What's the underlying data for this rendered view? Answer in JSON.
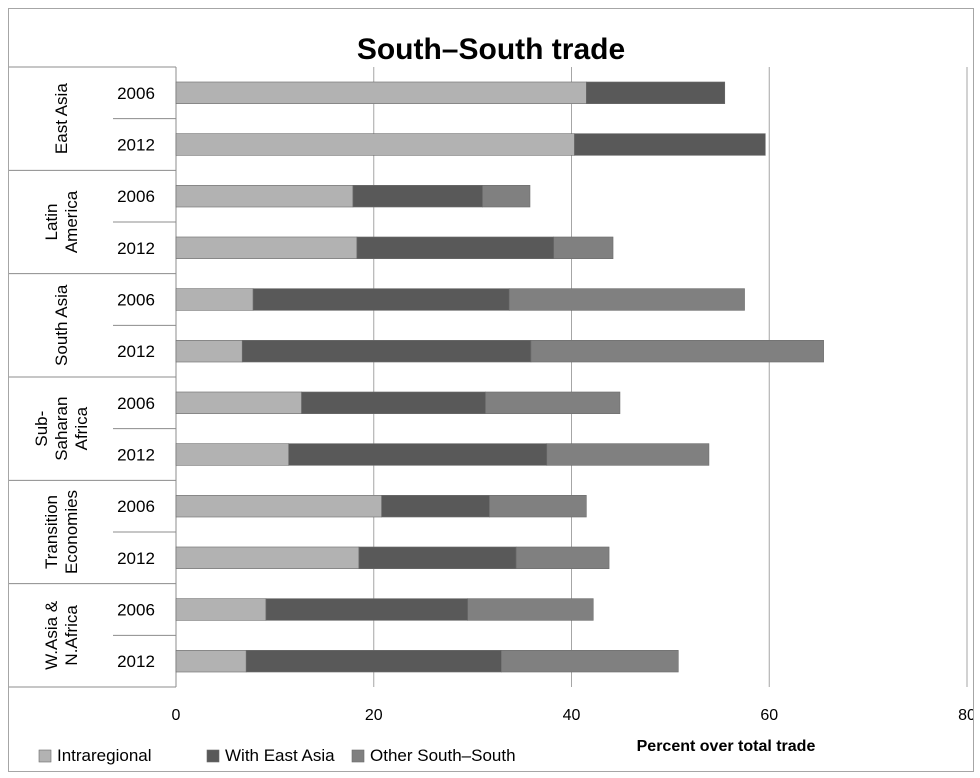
{
  "chart_data": {
    "type": "bar",
    "orientation": "horizontal",
    "stacked": true,
    "title": "South–South trade",
    "xlabel": "Percent over total trade",
    "ylabel": "",
    "xlim": [
      0,
      80
    ],
    "x_ticks": [
      "0",
      "20",
      "40",
      "60",
      "80"
    ],
    "grid": "vertical",
    "legend_position": "bottom-left",
    "groups": [
      {
        "label_lines": [
          "East Asia"
        ],
        "years": [
          "2006",
          "2012"
        ]
      },
      {
        "label_lines": [
          "Latin",
          "America"
        ],
        "years": [
          "2006",
          "2012"
        ]
      },
      {
        "label_lines": [
          "South Asia"
        ],
        "years": [
          "2006",
          "2012"
        ]
      },
      {
        "label_lines": [
          "Sub-",
          "Saharan",
          "Africa"
        ],
        "years": [
          "2006",
          "2012"
        ]
      },
      {
        "label_lines": [
          "Transition",
          "Economies"
        ],
        "years": [
          "2006",
          "2012"
        ]
      },
      {
        "label_lines": [
          "W.Asia &",
          "N.Africa"
        ],
        "years": [
          "2006",
          "2012"
        ]
      }
    ],
    "series": [
      {
        "name": "Intraregional",
        "color": "#b2b2b2",
        "values": [
          41.5,
          40.3,
          17.9,
          18.3,
          7.8,
          6.7,
          12.7,
          11.4,
          20.8,
          18.5,
          9.1,
          7.1
        ]
      },
      {
        "name": "With East Asia",
        "color": "#595959",
        "values": [
          14.0,
          19.3,
          13.1,
          19.9,
          25.9,
          29.2,
          18.6,
          26.1,
          10.9,
          15.9,
          20.4,
          25.8
        ]
      },
      {
        "name": "Other South–South",
        "color": "#808080",
        "values": [
          0,
          0,
          4.8,
          6.0,
          23.8,
          29.6,
          13.6,
          16.4,
          9.8,
          9.4,
          12.7,
          17.9
        ]
      }
    ]
  }
}
